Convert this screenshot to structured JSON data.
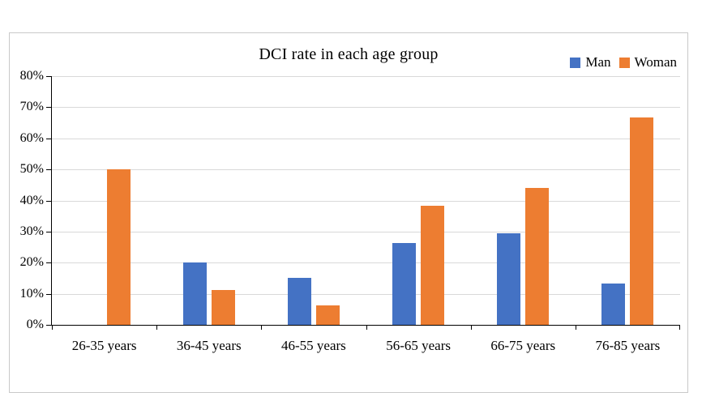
{
  "chart_data": {
    "type": "bar",
    "title": "DCI rate in each age group",
    "categories": [
      "26-35 years",
      "36-45 years",
      "46-55 years",
      "56-65 years",
      "66-75 years",
      "76-85 years"
    ],
    "series": [
      {
        "name": "Man",
        "color": "#4472C4",
        "values": [
          0,
          20,
          15,
          26.3,
          29.4,
          13.2
        ]
      },
      {
        "name": "Woman",
        "color": "#ED7D31",
        "values": [
          50,
          11.1,
          6.3,
          38.2,
          44.1,
          66.7
        ]
      }
    ],
    "xlabel": "",
    "ylabel": "",
    "ylim": [
      0,
      80
    ],
    "ytick_step": 10,
    "ytick_labels": [
      "0%",
      "10%",
      "20%",
      "30%",
      "40%",
      "50%",
      "60%",
      "70%",
      "80%"
    ],
    "grid": true,
    "gridline_color": "#d9d9d9",
    "axis_color": "#000000",
    "legend_position": "top-right"
  }
}
